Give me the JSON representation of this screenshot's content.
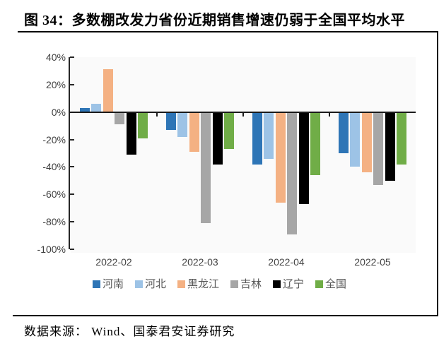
{
  "figure": {
    "title": "图 34：多数棚改发力省份近期销售增速仍弱于全国平均水平",
    "source": "数据来源： Wind、国泰君安证券研究"
  },
  "chart_data": {
    "type": "bar",
    "title": "",
    "categories": [
      "2022-02",
      "2022-03",
      "2022-04",
      "2022-05"
    ],
    "series": [
      {
        "name": "河南",
        "color": "#2E75B6",
        "values": [
          3,
          -13,
          -38,
          -30
        ]
      },
      {
        "name": "河北",
        "color": "#9DC3E6",
        "values": [
          6,
          -18,
          -34,
          -40
        ]
      },
      {
        "name": "黑龙江",
        "color": "#F4B183",
        "values": [
          31,
          -29,
          -66,
          -44
        ]
      },
      {
        "name": "吉林",
        "color": "#A6A6A6",
        "values": [
          -9,
          -81,
          -89,
          -53
        ]
      },
      {
        "name": "辽宁",
        "color": "#000000",
        "values": [
          -31,
          -38,
          -67,
          -50
        ]
      },
      {
        "name": "全国",
        "color": "#70AD47",
        "values": [
          -19,
          -27,
          -46,
          -38
        ]
      }
    ],
    "y_ticks": [
      "40%",
      "20%",
      "0%",
      "-20%",
      "-40%",
      "-60%",
      "-80%",
      "-100%"
    ],
    "ylim": [
      -100,
      40
    ],
    "xlabel": "",
    "ylabel": "",
    "grid": false,
    "legend_position": "bottom",
    "plot_background": "#FAFAFA"
  }
}
